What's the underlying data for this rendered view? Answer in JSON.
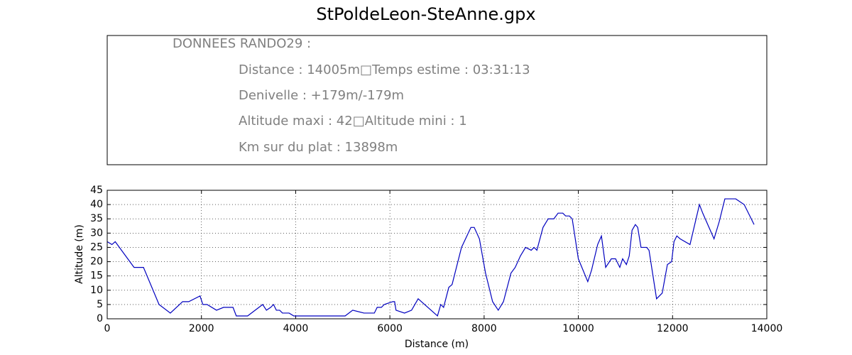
{
  "chart_data": {
    "type": "line",
    "title": "StPoldeLeon-SteAnne.gpx",
    "xlabel": "Distance (m)",
    "ylabel": "Altitude (m)",
    "x": [
      0,
      100,
      170,
      570,
      770,
      1100,
      1340,
      1600,
      1730,
      1970,
      2030,
      2120,
      2320,
      2470,
      2670,
      2740,
      2980,
      3300,
      3380,
      3470,
      3530,
      3590,
      3660,
      3720,
      3860,
      3960,
      5050,
      5210,
      5450,
      5670,
      5730,
      5820,
      5880,
      6060,
      6100,
      6130,
      6310,
      6460,
      6600,
      7010,
      7080,
      7140,
      7250,
      7320,
      7520,
      7720,
      7790,
      7900,
      8030,
      8180,
      8300,
      8410,
      8570,
      8660,
      8770,
      8880,
      9000,
      9060,
      9120,
      9250,
      9360,
      9480,
      9570,
      9670,
      9730,
      9810,
      9870,
      10000,
      10200,
      10280,
      10410,
      10490,
      10580,
      10700,
      10790,
      10880,
      10940,
      11020,
      11080,
      11140,
      11210,
      11260,
      11330,
      11450,
      11500,
      11660,
      11780,
      11890,
      11980,
      12030,
      12090,
      12160,
      12370,
      12570,
      12640,
      12880,
      12990,
      13110,
      13340,
      13520,
      13730
    ],
    "series": [
      {
        "name": "Altitude",
        "color": "#0000bf",
        "values": [
          27,
          26,
          27,
          18,
          18,
          5,
          2,
          6,
          6,
          8,
          5,
          5,
          3,
          4,
          4,
          1,
          1,
          5,
          3,
          4,
          5,
          3,
          3,
          2,
          2,
          1,
          1,
          3,
          2,
          2,
          4,
          4,
          5,
          6,
          6,
          3,
          2,
          3,
          7,
          1,
          5,
          4,
          11,
          12,
          25,
          32,
          32,
          28,
          16,
          6,
          3,
          6,
          16,
          18,
          22,
          25,
          24,
          25,
          24,
          32,
          35,
          35,
          37,
          37,
          36,
          36,
          35,
          21,
          13,
          17,
          26,
          29,
          18,
          21,
          21,
          18,
          21,
          19,
          22,
          31,
          33,
          32,
          25,
          25,
          24,
          7,
          9,
          19,
          20,
          27,
          29,
          28,
          26,
          40,
          37,
          28,
          34,
          42,
          42,
          40,
          33
        ]
      }
    ],
    "xlim": [
      0,
      14000
    ],
    "xticks": [
      0,
      2000,
      4000,
      6000,
      8000,
      10000,
      12000,
      14000
    ],
    "ylim": [
      0,
      45
    ],
    "yticks": [
      0,
      5,
      10,
      15,
      20,
      25,
      30,
      35,
      40,
      45
    ],
    "grid": true
  },
  "info_box": {
    "lines": [
      "DONNEES RANDO29  :",
      "Distance : 14005m□Temps estime : 03:31:13",
      "Denivelle : +179m/-179m",
      "Altitude maxi : 42□Altitude mini : 1",
      "Km sur du plat : 13898m"
    ]
  }
}
